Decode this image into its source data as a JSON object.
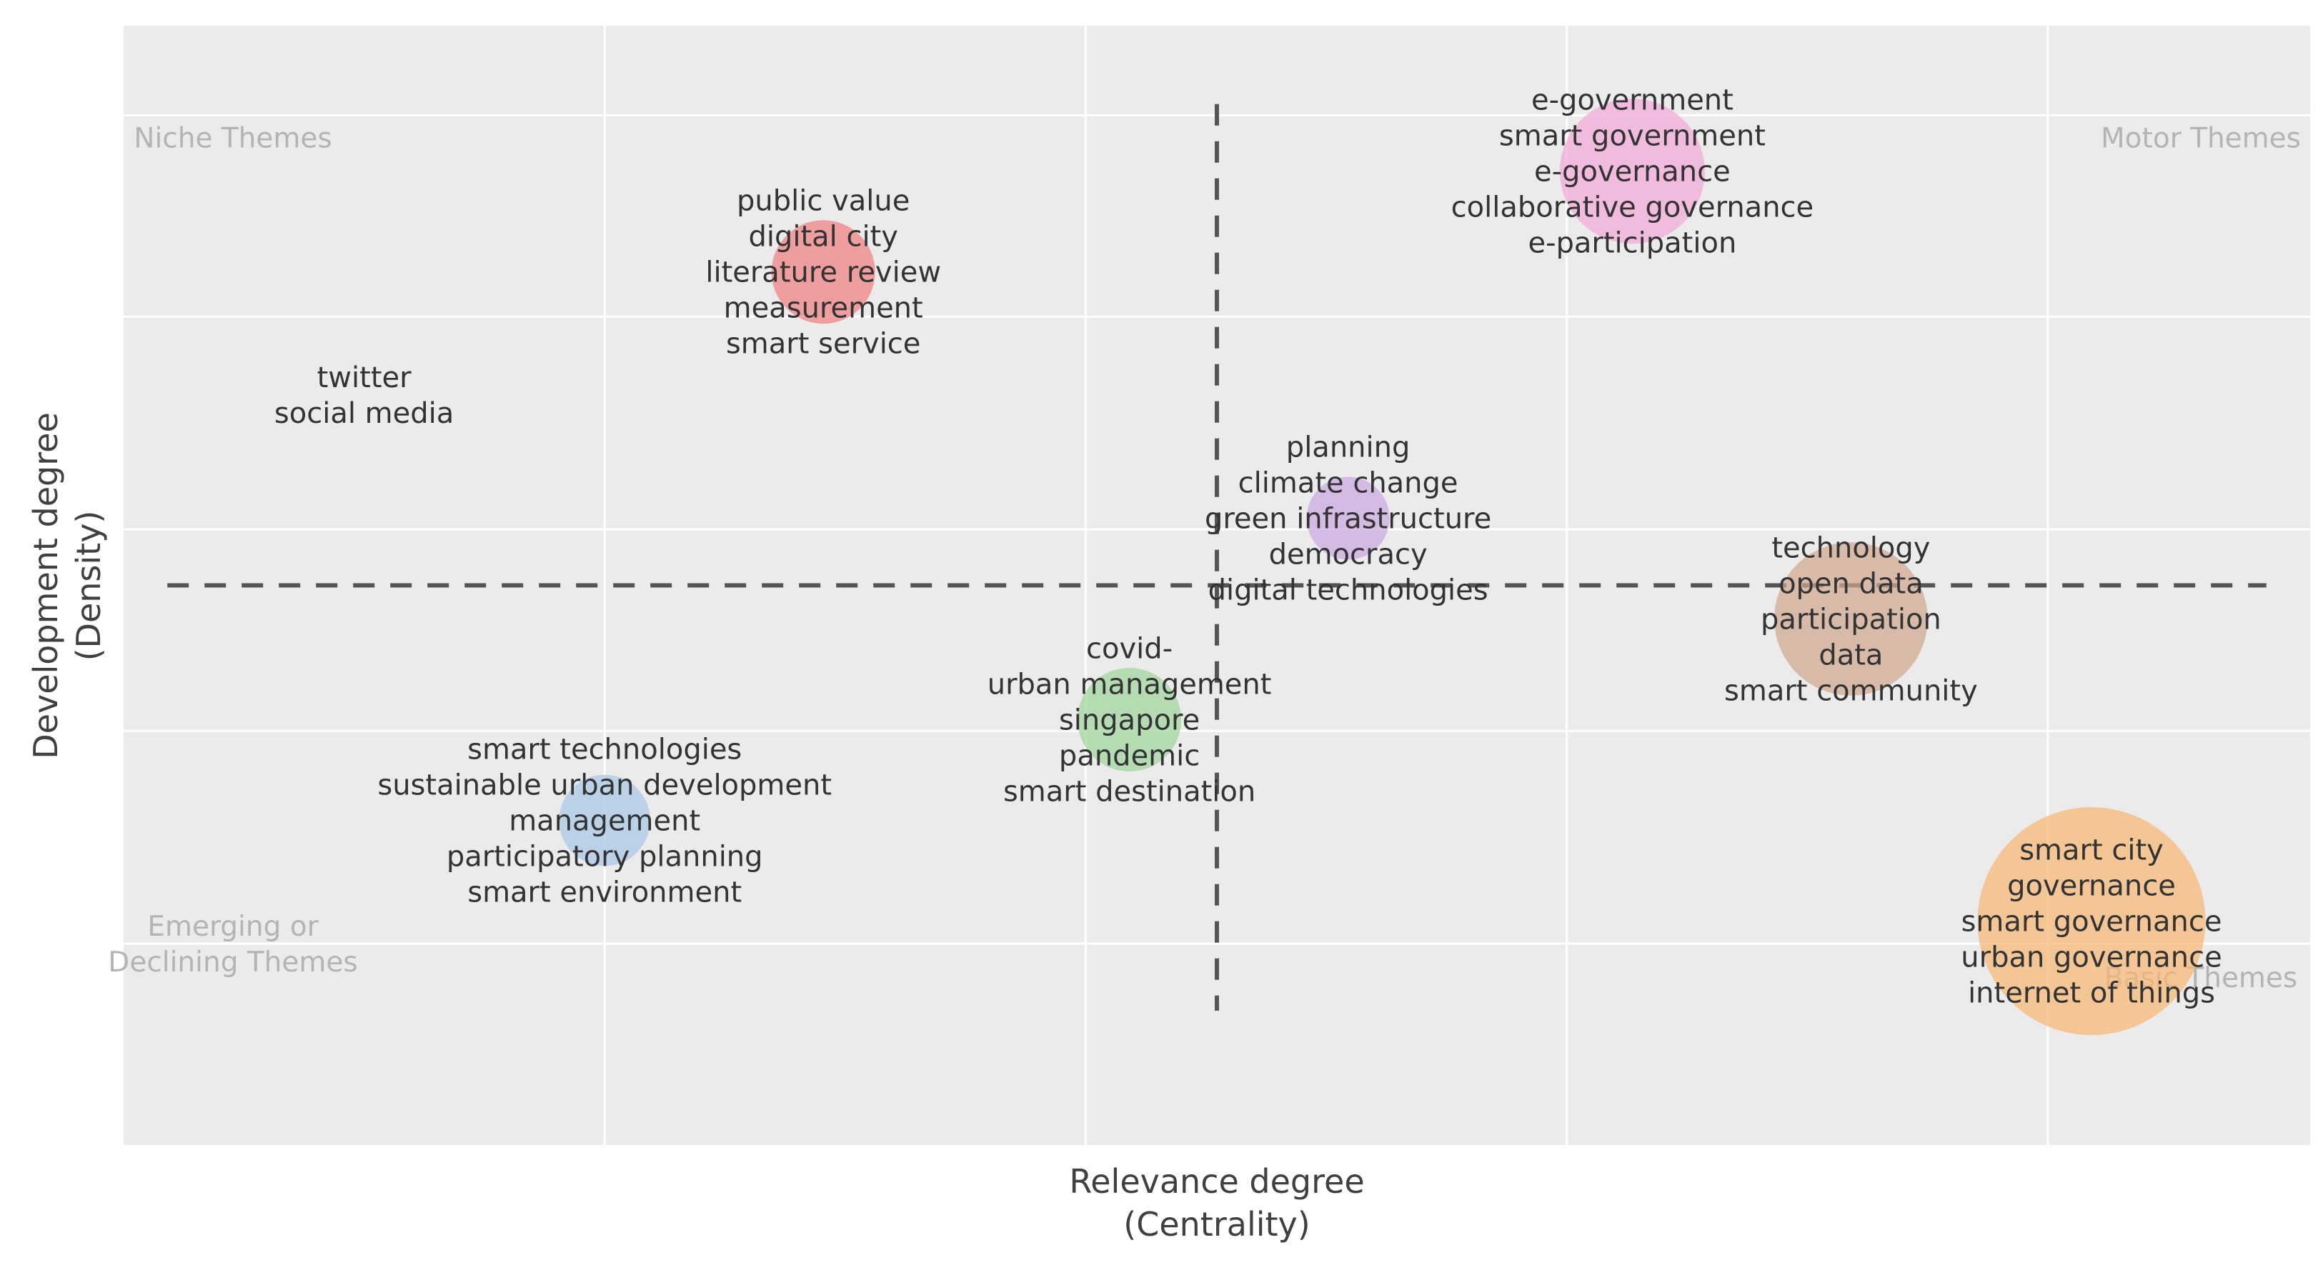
{
  "chart_data": {
    "type": "scatter",
    "subtype": "bubble",
    "xlabel": [
      "Relevance degree",
      "(Centrality)"
    ],
    "ylabel": [
      "Development degree",
      "(Density)"
    ],
    "grid": true,
    "quadrants": {
      "top_left": [
        "Niche Themes"
      ],
      "top_right": [
        "Motor Themes"
      ],
      "bottom_left": [
        "Emerging or",
        "Declining Themes"
      ],
      "bottom_right": [
        "Basic Themes"
      ]
    },
    "reference_lines": {
      "x": 0.5,
      "y": 0.5
    },
    "clusters": [
      {
        "x": 0.69,
        "y": 0.87,
        "size": 0.35,
        "color": "#f2a8d8",
        "labels": [
          "e-government",
          "smart government",
          "e-governance",
          "collaborative governance",
          "e-participation"
        ]
      },
      {
        "x": 0.32,
        "y": 0.78,
        "size": 0.25,
        "color": "#ee8080",
        "labels": [
          "public value",
          "digital city",
          "literature review",
          "measurement",
          "smart service"
        ]
      },
      {
        "x": 0.11,
        "y": 0.67,
        "size": 0.0,
        "color": "#ffffff",
        "labels": [
          "twitter",
          "social media"
        ]
      },
      {
        "x": 0.56,
        "y": 0.56,
        "size": 0.2,
        "color": "#c9a8e0",
        "labels": [
          "planning",
          "climate change",
          "green infrastructure",
          "democracy",
          "digital technologies"
        ]
      },
      {
        "x": 0.79,
        "y": 0.47,
        "size": 0.37,
        "color": "#d0a68f",
        "labels": [
          "technology",
          "open data",
          "participation",
          "data",
          "smart community"
        ]
      },
      {
        "x": 0.46,
        "y": 0.38,
        "size": 0.25,
        "color": "#9ed49a",
        "labels": [
          "covid-",
          "urban management",
          "singapore",
          "pandemic",
          "smart destination"
        ]
      },
      {
        "x": 0.22,
        "y": 0.29,
        "size": 0.22,
        "color": "#a8c6e6",
        "labels": [
          "smart technologies",
          "sustainable urban development",
          "management",
          "participatory planning",
          "smart environment"
        ]
      },
      {
        "x": 0.9,
        "y": 0.2,
        "size": 0.55,
        "color": "#f7b573",
        "labels": [
          "smart city",
          "governance",
          "smart governance",
          "urban governance",
          "internet of things"
        ]
      }
    ]
  }
}
